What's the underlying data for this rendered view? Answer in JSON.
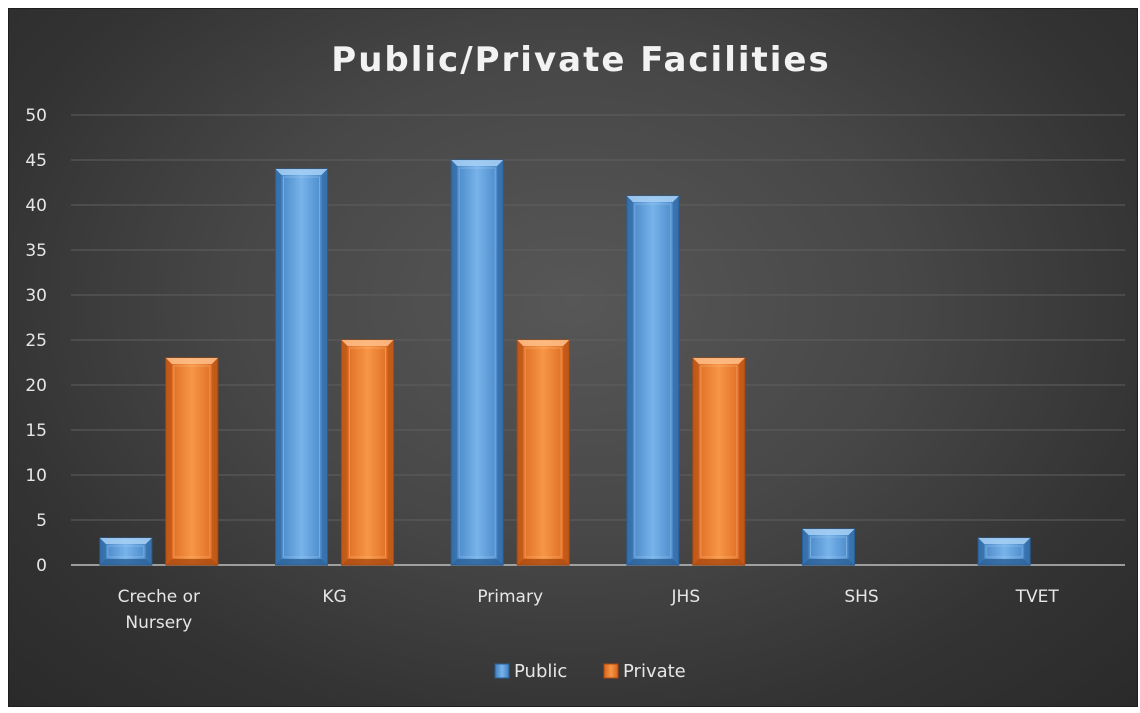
{
  "chart_data": {
    "type": "bar",
    "title": "Public/Private Facilities",
    "categories": [
      [
        "Creche or",
        "Nursery"
      ],
      [
        "KG"
      ],
      [
        "Primary"
      ],
      [
        "JHS"
      ],
      [
        "SHS"
      ],
      [
        "TVET"
      ]
    ],
    "series": [
      {
        "name": "Public",
        "values": [
          3,
          44,
          45,
          41,
          4,
          3
        ],
        "color": "#5b9bd5"
      },
      {
        "name": "Private",
        "values": [
          23,
          25,
          25,
          23,
          0,
          0
        ],
        "color": "#ed7d31"
      }
    ],
    "ylim": [
      0,
      50
    ],
    "yticks": [
      "0",
      "5",
      "10",
      "15",
      "20",
      "25",
      "30",
      "35",
      "40",
      "45",
      "50"
    ],
    "grid": true,
    "legend_position": "bottom",
    "background": "#404040"
  }
}
